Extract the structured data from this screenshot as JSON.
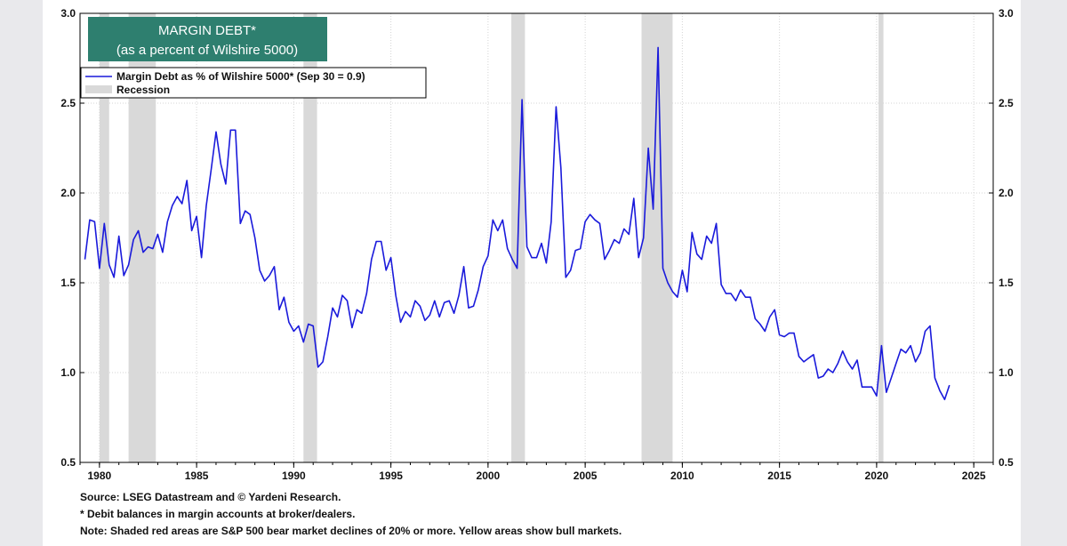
{
  "chart_data": {
    "type": "line",
    "title_line1": "MARGIN DEBT*",
    "title_line2": "(as a percent of Wilshire 5000)",
    "title_box_color": "#2e7f6f",
    "line_color": "#1a1adb",
    "recession_color": "#d9d9d9",
    "xlim": [
      1979.0,
      2026.0
    ],
    "ylim": [
      0.5,
      3.0
    ],
    "x_ticks": [
      "1980",
      "1985",
      "1990",
      "1995",
      "2000",
      "2005",
      "2010",
      "2015",
      "2020",
      "2025"
    ],
    "y_ticks": [
      "0.5",
      "1.0",
      "1.5",
      "2.0",
      "2.5",
      "3.0"
    ],
    "grid": true,
    "legend_position": "top-left",
    "legend": {
      "series_label": "Margin Debt as % of Wilshire 5000*  (Sep 30 = 0.9)",
      "recession_label": "Recession"
    },
    "recessions": [
      [
        1980.0,
        1980.5
      ],
      [
        1981.5,
        1982.9
      ],
      [
        1990.5,
        1991.2
      ],
      [
        2001.2,
        2001.9
      ],
      [
        2007.9,
        2009.5
      ],
      [
        2020.1,
        2020.35
      ]
    ],
    "series": [
      {
        "name": "Margin Debt as % of Wilshire 5000*  (Sep 30 = 0.9)",
        "x": [
          1979.25,
          1979.5,
          1979.75,
          1980.0,
          1980.25,
          1980.5,
          1980.75,
          1981.0,
          1981.25,
          1981.5,
          1981.75,
          1982.0,
          1982.25,
          1982.5,
          1982.75,
          1983.0,
          1983.25,
          1983.5,
          1983.75,
          1984.0,
          1984.25,
          1984.5,
          1984.75,
          1985.0,
          1985.25,
          1985.5,
          1985.75,
          1986.0,
          1986.25,
          1986.5,
          1986.75,
          1987.0,
          1987.25,
          1987.5,
          1987.75,
          1988.0,
          1988.25,
          1988.5,
          1988.75,
          1989.0,
          1989.25,
          1989.5,
          1989.75,
          1990.0,
          1990.25,
          1990.5,
          1990.75,
          1991.0,
          1991.25,
          1991.5,
          1991.75,
          1992.0,
          1992.25,
          1992.5,
          1992.75,
          1993.0,
          1993.25,
          1993.5,
          1993.75,
          1994.0,
          1994.25,
          1994.5,
          1994.75,
          1995.0,
          1995.25,
          1995.5,
          1995.75,
          1996.0,
          1996.25,
          1996.5,
          1996.75,
          1997.0,
          1997.25,
          1997.5,
          1997.75,
          1998.0,
          1998.25,
          1998.5,
          1998.75,
          1999.0,
          1999.25,
          1999.5,
          1999.75,
          2000.0,
          2000.25,
          2000.5,
          2000.75,
          2001.0,
          2001.25,
          2001.5,
          2001.75,
          2002.0,
          2002.25,
          2002.5,
          2002.75,
          2003.0,
          2003.25,
          2003.5,
          2003.75,
          2004.0,
          2004.25,
          2004.5,
          2004.75,
          2005.0,
          2005.25,
          2005.5,
          2005.75,
          2006.0,
          2006.25,
          2006.5,
          2006.75,
          2007.0,
          2007.25,
          2007.5,
          2007.75,
          2008.0,
          2008.25,
          2008.5,
          2008.75,
          2009.0,
          2009.25,
          2009.5,
          2009.75,
          2010.0,
          2010.25,
          2010.5,
          2010.75,
          2011.0,
          2011.25,
          2011.5,
          2011.75,
          2012.0,
          2012.25,
          2012.5,
          2012.75,
          2013.0,
          2013.25,
          2013.5,
          2013.75,
          2014.0,
          2014.25,
          2014.5,
          2014.75,
          2015.0,
          2015.25,
          2015.5,
          2015.75,
          2016.0,
          2016.25,
          2016.5,
          2016.75,
          2017.0,
          2017.25,
          2017.5,
          2017.75,
          2018.0,
          2018.25,
          2018.5,
          2018.75,
          2019.0,
          2019.25,
          2019.5,
          2019.75,
          2020.0,
          2020.25,
          2020.5,
          2020.75,
          2021.0,
          2021.25,
          2021.5,
          2021.75,
          2022.0,
          2022.25,
          2022.5,
          2022.75,
          2023.0,
          2023.25,
          2023.5,
          2023.75
        ],
        "values": [
          1.63,
          1.85,
          1.84,
          1.58,
          1.83,
          1.6,
          1.53,
          1.76,
          1.54,
          1.6,
          1.74,
          1.79,
          1.67,
          1.7,
          1.69,
          1.77,
          1.67,
          1.84,
          1.93,
          1.98,
          1.94,
          2.07,
          1.79,
          1.87,
          1.64,
          1.93,
          2.13,
          2.34,
          2.16,
          2.05,
          2.35,
          2.35,
          1.83,
          1.9,
          1.88,
          1.75,
          1.57,
          1.51,
          1.54,
          1.59,
          1.35,
          1.42,
          1.28,
          1.23,
          1.26,
          1.17,
          1.27,
          1.26,
          1.03,
          1.06,
          1.2,
          1.36,
          1.31,
          1.43,
          1.4,
          1.25,
          1.35,
          1.33,
          1.44,
          1.63,
          1.73,
          1.73,
          1.57,
          1.64,
          1.43,
          1.28,
          1.34,
          1.31,
          1.4,
          1.37,
          1.29,
          1.32,
          1.4,
          1.31,
          1.39,
          1.4,
          1.33,
          1.43,
          1.59,
          1.36,
          1.37,
          1.46,
          1.59,
          1.65,
          1.85,
          1.79,
          1.85,
          1.69,
          1.63,
          1.58,
          2.52,
          1.7,
          1.64,
          1.64,
          1.72,
          1.61,
          1.84,
          2.48,
          2.14,
          1.53,
          1.57,
          1.68,
          1.69,
          1.84,
          1.88,
          1.85,
          1.83,
          1.63,
          1.68,
          1.74,
          1.72,
          1.8,
          1.77,
          1.97,
          1.64,
          1.75,
          2.25,
          1.91,
          2.81,
          1.58,
          1.5,
          1.45,
          1.42,
          1.57,
          1.45,
          1.78,
          1.66,
          1.63,
          1.76,
          1.72,
          1.83,
          1.49,
          1.44,
          1.44,
          1.4,
          1.46,
          1.42,
          1.42,
          1.3,
          1.27,
          1.23,
          1.31,
          1.35,
          1.21,
          1.2,
          1.22,
          1.22,
          1.09,
          1.06,
          1.08,
          1.1,
          0.97,
          0.98,
          1.02,
          1.0,
          1.05,
          1.12,
          1.06,
          1.02,
          1.07,
          0.92,
          0.92,
          0.92,
          0.87,
          1.15,
          0.89,
          0.97,
          1.05,
          1.13,
          1.11,
          1.15,
          1.06,
          1.11,
          1.23,
          1.26,
          0.97,
          0.9,
          0.85,
          0.93
        ]
      }
    ]
  },
  "footnotes": {
    "source": "Source: LSEG Datastream and © Yardeni Research.",
    "debit": "* Debit balances in margin accounts at broker/dealers.",
    "note": "Note: Shaded red areas are S&P 500 bear market declines of 20% or more. Yellow areas show bull markets."
  }
}
